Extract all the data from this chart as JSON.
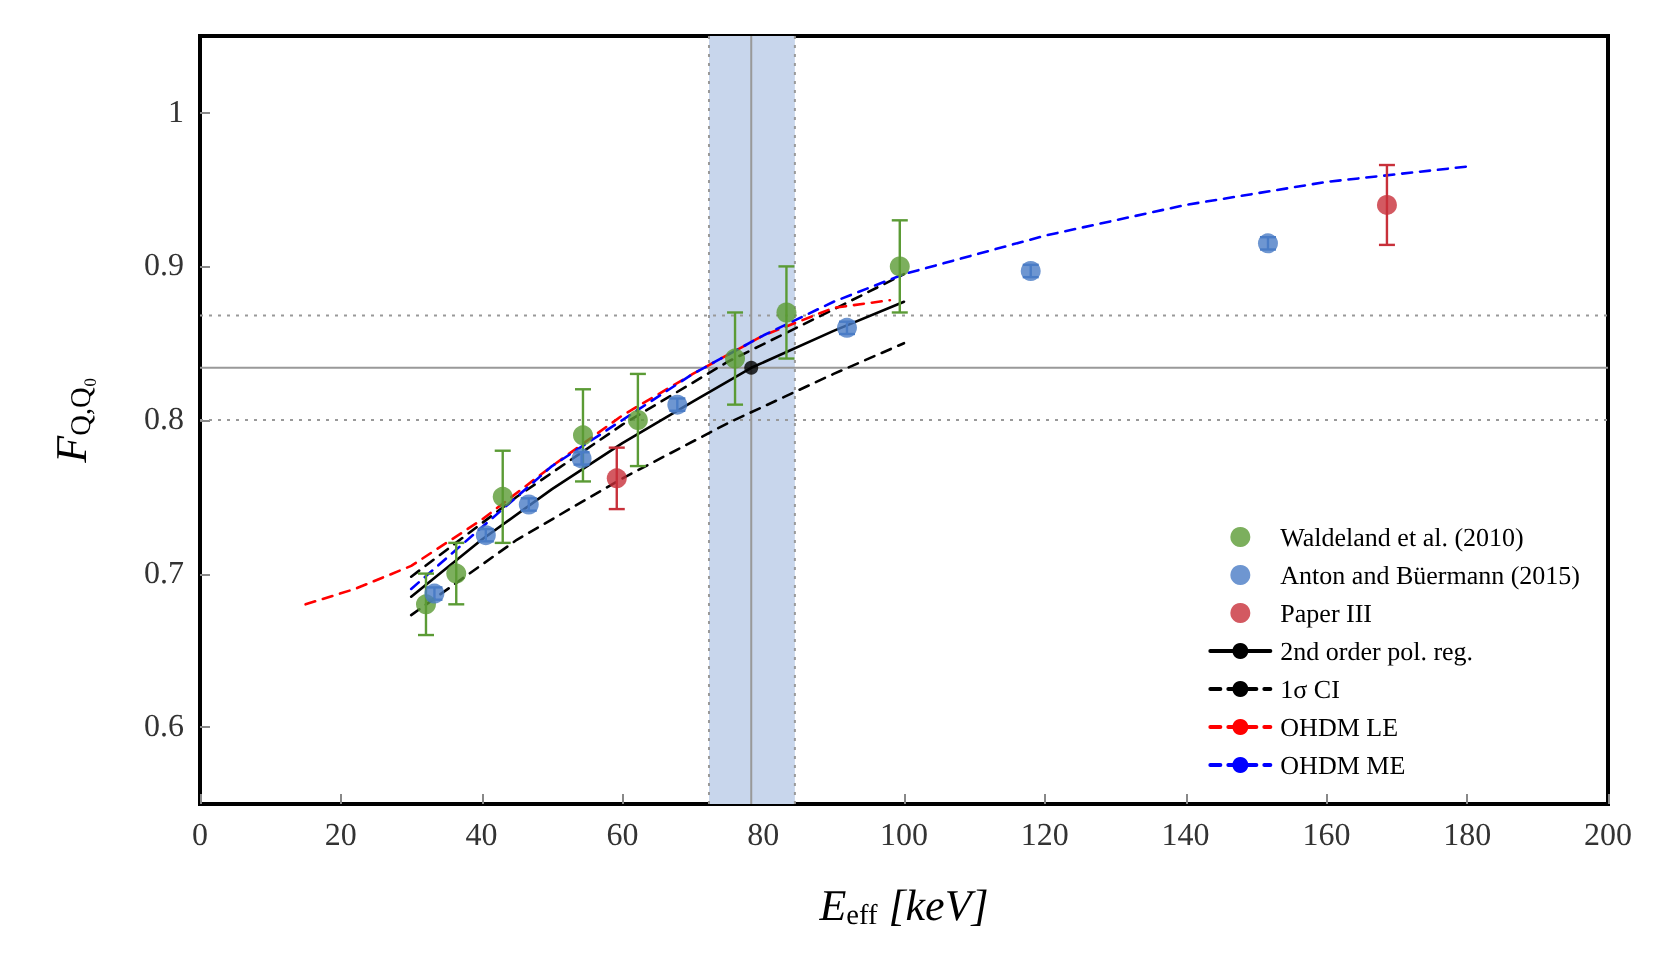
{
  "chart_data": {
    "type": "scatter",
    "xlabel": "E$_{eff}$ [keV]",
    "ylabel": "F$_{Q,Q₀}$",
    "xlim": [
      0,
      200
    ],
    "ylim": [
      0.55,
      1.05
    ],
    "xticks": [
      0,
      20,
      40,
      60,
      80,
      100,
      120,
      140,
      160,
      180,
      200
    ],
    "yticks": [
      0.6,
      0.7,
      0.8,
      0.9,
      1
    ],
    "grid": false,
    "legend": "bottom right",
    "series": [
      {
        "name": "Waldeland et al. (2010)",
        "marker": "circle",
        "color": "#5b9b35",
        "x": [
          32.1,
          36.4,
          43,
          54.4,
          62.2,
          76,
          83.3,
          99.4
        ],
        "values": [
          0.68,
          0.7,
          0.75,
          0.79,
          0.8,
          0.84,
          0.87,
          0.9
        ],
        "errors": [
          0.02,
          0.02,
          0.03,
          0.03,
          0.03,
          0.03,
          0.03,
          0.03
        ]
      },
      {
        "name": "Anton and Büermann (2015)",
        "marker": "circle",
        "color": "#4a7cc5",
        "x": [
          33.3,
          40.6,
          46.7,
          54.2,
          67.8,
          91.9,
          118,
          151.7
        ],
        "values": [
          0.687,
          0.725,
          0.745,
          0.775,
          0.81,
          0.86,
          0.897,
          0.915
        ],
        "errors": [
          0.004,
          0.004,
          0.004,
          0.004,
          0.004,
          0.004,
          0.004,
          0.004
        ]
      },
      {
        "name": "Paper III",
        "marker": "circle",
        "color": "#c8303a",
        "x": [
          59.2,
          168.6
        ],
        "values": [
          0.762,
          0.94
        ],
        "errors": [
          0.02,
          0.026
        ]
      },
      {
        "marker": "circle",
        "color": "#000000",
        "x": [
          78.3
        ],
        "values": [
          0.834
        ]
      },
      {
        "name": "2nd order pol. reg.",
        "type": "line",
        "marker": "none",
        "line_style": "solid",
        "color": "#000000",
        "x": [
          30,
          40,
          50,
          60,
          70,
          78.3,
          90,
          100
        ],
        "values": [
          0.685,
          0.722,
          0.755,
          0.785,
          0.812,
          0.834,
          0.858,
          0.877
        ]
      },
      {
        "name": "1σ CI",
        "type": "line",
        "marker": "none",
        "line_style": "dashed",
        "color": "#000000",
        "x": [
          30,
          45,
          60,
          75,
          90,
          100
        ],
        "values": [
          0.698,
          0.75,
          0.797,
          0.838,
          0.872,
          0.895
        ]
      },
      {
        "type": "line",
        "marker": "none",
        "line_style": "dashed",
        "color": "#000000",
        "x": [
          30,
          45,
          60,
          75,
          90,
          100
        ],
        "values": [
          0.673,
          0.722,
          0.762,
          0.798,
          0.83,
          0.85
        ]
      },
      {
        "name": "OHDM LE",
        "type": "line",
        "marker": "none",
        "line_style": "dashed",
        "color": "#ff0000",
        "x": [
          15,
          22,
          30,
          40,
          50,
          60,
          70,
          80,
          90,
          98
        ],
        "values": [
          0.68,
          0.69,
          0.705,
          0.735,
          0.77,
          0.803,
          0.83,
          0.855,
          0.873,
          0.878
        ]
      },
      {
        "name": "OHDM ME",
        "type": "line",
        "marker": "none",
        "line_style": "dashed",
        "color": "#0000ff",
        "x": [
          30,
          40,
          50,
          60,
          70,
          80,
          90,
          100,
          120,
          140,
          160,
          180
        ],
        "values": [
          0.69,
          0.73,
          0.77,
          0.8,
          0.83,
          0.855,
          0.877,
          0.895,
          0.92,
          0.94,
          0.955,
          0.965
        ]
      }
    ],
    "ref_lines": [
      {
        "axis": "y",
        "value": 0.834,
        "color": "#999999",
        "line_style": "solid"
      },
      {
        "axis": "x",
        "value": 78.3,
        "color": "#999999",
        "line_style": "solid"
      },
      {
        "axis": "y",
        "value": 0.868,
        "color": "#999999",
        "line_style": "dotted"
      },
      {
        "axis": "y",
        "value": 0.8,
        "color": "#999999",
        "line_style": "dotted"
      },
      {
        "axis": "x",
        "value": 72.3,
        "color": "#999999",
        "line_style": "dotted"
      },
      {
        "axis": "x",
        "value": 84.5,
        "color": "#999999",
        "line_style": "dotted"
      }
    ],
    "bands": [
      {
        "axis": "x",
        "from": 72.3,
        "to": 84.5,
        "color": "#c8d6ec"
      }
    ]
  }
}
